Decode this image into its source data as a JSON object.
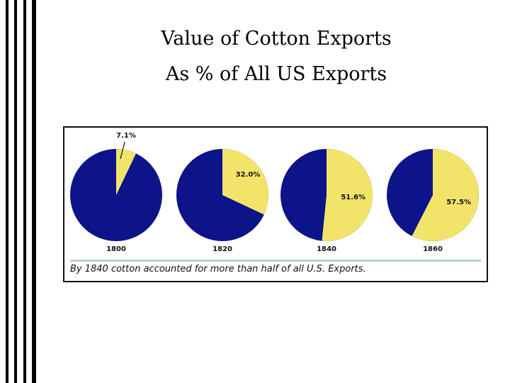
{
  "slide": {
    "title_line1": "Value of Cotton Exports",
    "title_line2": "As % of All US Exports"
  },
  "caption": "By 1840 cotton accounted for more than half of all U.S. Exports.",
  "colors": {
    "cotton": "#f2e46a",
    "other": "#0d148a"
  },
  "chart_data": {
    "type": "pie",
    "title": "",
    "categories": [
      "1800",
      "1820",
      "1840",
      "1860"
    ],
    "series": [
      {
        "values": [
          7.1,
          32.0,
          51.6,
          57.5
        ]
      }
    ],
    "value_labels": [
      "7.1%",
      "32.0%",
      "51.6%",
      "57.5%"
    ],
    "unit": "%",
    "legend": "none",
    "grid": false
  }
}
